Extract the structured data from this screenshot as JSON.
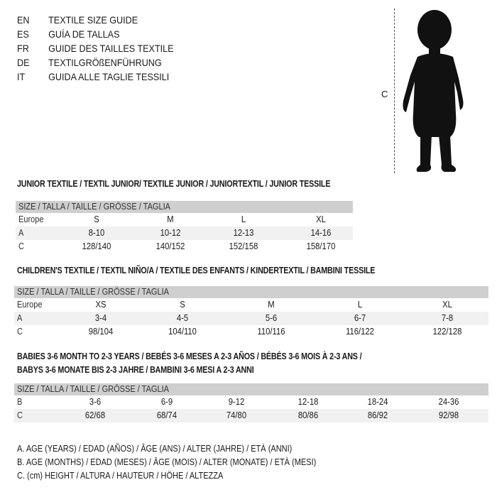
{
  "languages": [
    {
      "code": "EN",
      "text": "TEXTILE SIZE GUIDE"
    },
    {
      "code": "ES",
      "text": "GUÍA DE TALLAS"
    },
    {
      "code": "FR",
      "text": "GUIDE DES TAILLES TEXTILE"
    },
    {
      "code": "DE",
      "text": "TEXTILGRÖßENFÜHRUNG"
    },
    {
      "code": "IT",
      "text": "GUIDA ALLE TAGLIE TESSILI"
    }
  ],
  "figure": {
    "height_label": "C",
    "icon": "toddler-silhouette-icon"
  },
  "junior": {
    "title": "JUNIOR TEXTILE / TEXTIL JUNIOR/ TEXTILE JUNIOR / JUNIORTEXTIL / JUNIOR TESSILE",
    "header": "SIZE / TALLA / TAILLE / GRÖSSE / TAGLIA",
    "rows": [
      {
        "label": "Europe",
        "values": [
          "S",
          "M",
          "L",
          "XL"
        ]
      },
      {
        "label": "A",
        "values": [
          "8-10",
          "10-12",
          "12-13",
          "14-16"
        ]
      },
      {
        "label": "C",
        "values": [
          "128/140",
          "140/152",
          "152/158",
          "158/170"
        ]
      }
    ]
  },
  "children": {
    "title": "CHILDREN'S TEXTILE / TEXTIL NIÑO/A / TEXTILE DES ENFANTS / KINDERTEXTIL / BAMBINI TESSILE",
    "header": "SIZE / TALLA / TAILLE / GRÖSSE / TAGLIA",
    "rows": [
      {
        "label": "Europe",
        "values": [
          "XS",
          "S",
          "M",
          "L",
          "XL"
        ]
      },
      {
        "label": "A",
        "values": [
          "3-4",
          "4-5",
          "5-6",
          "6-7",
          "7-8"
        ]
      },
      {
        "label": "C",
        "values": [
          "98/104",
          "104/110",
          "110/116",
          "116/122",
          "122/128"
        ]
      }
    ]
  },
  "babies": {
    "title_line1": "BABIES 3-6 MONTH TO 2-3 YEARS / BEBÉS 3-6 MESES A 2-3 AÑOS / BÉBÉS 3-6 MOIS À 2-3 ANS /",
    "title_line2": "BABYS 3-6 MONATE BIS 2-3 JAHRE / BAMBINI 3-6 MESI A 2-3 ANNI",
    "header": "SIZE / TALLA / TAILLE / GRÖSSE / TAGLIA",
    "rows": [
      {
        "label": "B",
        "values": [
          "3-6",
          "6-9",
          "9-12",
          "12-18",
          "18-24",
          "24-36"
        ]
      },
      {
        "label": "C",
        "values": [
          "62/68",
          "68/74",
          "74/80",
          "80/86",
          "86/92",
          "92/98"
        ]
      }
    ]
  },
  "legend": [
    "A. AGE (YEARS) / EDAD (AÑOS) / ÂGE (ANS) / ALTER (JAHRE) / ETÀ (ANNI)",
    "B. AGE (MONTHS) / EDAD (MESES) / ÂGE (MOIS) / ALTER (MONATE) / ETÀ (MESI)",
    "C. (cm) HEIGHT / ALTURA / HAUTEUR / HÖHE / ALTEZZA"
  ]
}
